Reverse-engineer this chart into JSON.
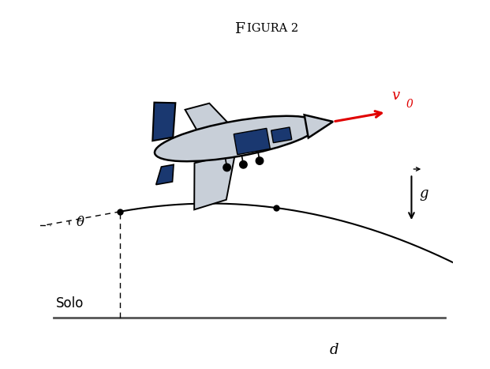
{
  "title": "FIGURA 2",
  "title_fontsize": 13,
  "background_color": "#ffffff",
  "solo_label": "Solo",
  "d_label": "d",
  "theta_label": "θ",
  "v0_label": "v",
  "v0_sub": "0",
  "g_label": "g",
  "trajectory_color": "#000000",
  "dashed_color": "#000000",
  "arrow_color": "#e00000",
  "g_arrow_color": "#000000",
  "dot_color": "#000000",
  "solo_line_color": "#555555",
  "plane_body_color": "#c8cfd8",
  "plane_dark_color": "#1a3870",
  "plane_edge_color": "#000000",
  "fig_width": 6.21,
  "fig_height": 4.67,
  "dpi": 100,
  "xlim": [
    0,
    10
  ],
  "ylim": [
    0,
    8.5
  ],
  "x0_traj": 2.0,
  "y0_traj": 3.6,
  "ground_y": 1.05,
  "vx_s": 2.5,
  "vy_s": 0.45,
  "g_s": 0.52,
  "dot_times": [
    0,
    0.75,
    1.5,
    3.6,
    5.2
  ]
}
